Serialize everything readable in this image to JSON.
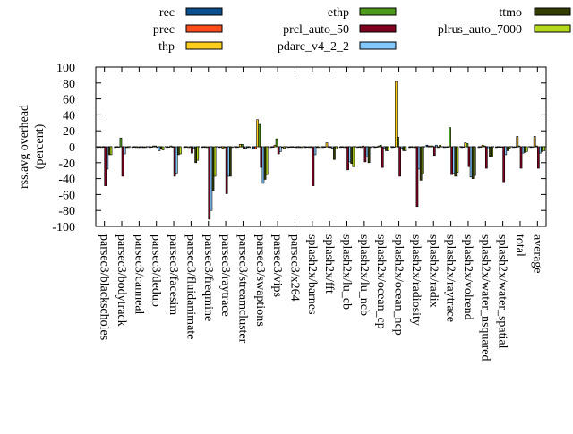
{
  "chart_data": {
    "type": "bar",
    "ylabel": [
      "rss.avg overhead",
      "(percent)"
    ],
    "ylim": [
      -100,
      100
    ],
    "yticks": [
      -100,
      -80,
      -60,
      -40,
      -20,
      0,
      20,
      40,
      60,
      80,
      100
    ],
    "grid": false,
    "legend_placement": "top",
    "categories": [
      "parsec3/blackscholes",
      "parsec3/bodytrack",
      "parsec3/canneal",
      "parsec3/dedup",
      "parsec3/facesim",
      "parsec3/fluidanimate",
      "parsec3/freqmine",
      "parsec3/raytrace",
      "parsec3/streamcluster",
      "parsec3/swaptions",
      "parsec3/vips",
      "parsec3/x264",
      "splash2x/barnes",
      "splash2x/fft",
      "splash2x/lu_cb",
      "splash2x/lu_ncb",
      "splash2x/ocean_cp",
      "splash2x/ocean_ncp",
      "splash2x/radiosity",
      "splash2x/radix",
      "splash2x/raytrace",
      "splash2x/volrend",
      "splash2x/water_nsquared",
      "splash2x/water_spatial",
      "total",
      "average"
    ],
    "series": [
      {
        "name": "rec",
        "color": "#0b4f8f",
        "values": [
          -1,
          -1,
          -1,
          -1,
          -1,
          -1,
          -1,
          -1,
          -1,
          -3,
          -1,
          -1,
          -1,
          -1,
          -1,
          -1,
          -1,
          -1,
          -1,
          2,
          -1,
          -1,
          -1,
          -1,
          -1,
          -1
        ]
      },
      {
        "name": "prec",
        "color": "#ff4d1a",
        "values": [
          0,
          0,
          0,
          0,
          0,
          0,
          0,
          0,
          0,
          -3,
          0,
          0,
          0,
          0,
          0,
          0,
          0,
          0,
          0,
          1,
          0,
          0,
          0,
          0,
          0,
          0
        ]
      },
      {
        "name": "thp",
        "color": "#ffcc1a",
        "values": [
          -1,
          0,
          -1,
          1,
          1,
          -1,
          -1,
          -2,
          3,
          34,
          2,
          0,
          -1,
          5,
          -1,
          -1,
          1,
          82,
          -1,
          1,
          0,
          5,
          2,
          0,
          13,
          13
        ]
      },
      {
        "name": "ethp",
        "color": "#4d9a1a",
        "values": [
          0,
          11,
          -1,
          1,
          0,
          -1,
          -1,
          -1,
          3,
          28,
          10,
          0,
          -1,
          0,
          -1,
          1,
          2,
          12,
          -1,
          1,
          24,
          4,
          1,
          0,
          1,
          1
        ]
      },
      {
        "name": "prcl_auto_50",
        "color": "#800020",
        "values": [
          -49,
          -37,
          -1,
          -1,
          -37,
          -8,
          -91,
          -59,
          -2,
          -26,
          -9,
          -1,
          -49,
          -1,
          -29,
          -19,
          -26,
          -37,
          -75,
          -11,
          -35,
          -25,
          -27,
          -44,
          -27,
          -27
        ]
      },
      {
        "name": "pdarc_v4_2_2",
        "color": "#80c8ff",
        "values": [
          -28,
          -9,
          -1,
          -5,
          -33,
          -2,
          -80,
          -37,
          -2,
          -46,
          -6,
          -1,
          -10,
          -2,
          -19,
          -13,
          -2,
          -2,
          -28,
          2,
          -33,
          -38,
          -3,
          -10,
          -8,
          -8
        ]
      },
      {
        "name": "ttmo",
        "color": "#333d00",
        "values": [
          -10,
          -1,
          -1,
          -2,
          -10,
          -20,
          -55,
          -37,
          -1,
          -41,
          -1,
          -1,
          -1,
          -16,
          -21,
          -20,
          -5,
          -5,
          -42,
          -1,
          -37,
          -40,
          -12,
          -5,
          -7,
          -6
        ]
      },
      {
        "name": "plrus_auto_7000",
        "color": "#b3d91a",
        "values": [
          -10,
          -1,
          -1,
          -4,
          -9,
          -17,
          -37,
          -1,
          -1,
          -35,
          -2,
          -1,
          -1,
          -3,
          -25,
          -1,
          -5,
          -5,
          -34,
          2,
          -32,
          -36,
          -13,
          -2,
          -6,
          -5
        ]
      }
    ]
  }
}
